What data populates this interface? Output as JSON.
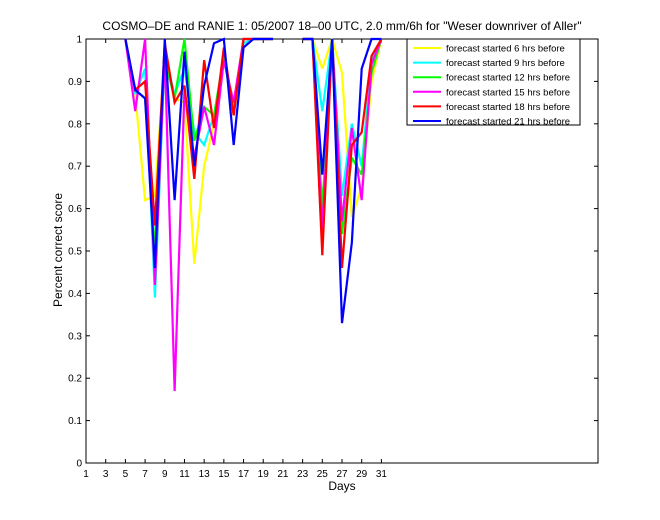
{
  "chart_data": {
    "type": "line",
    "title": "COSMO–DE and RANIE 1: 05/2007 18–00 UTC, 2.0 mm/6h for \"Weser downriver of Aller\"",
    "xlabel": "Days",
    "ylabel": "Percent correct score",
    "xlim": [
      1,
      53
    ],
    "ylim": [
      0,
      1
    ],
    "xticks": [
      1,
      3,
      5,
      7,
      9,
      11,
      13,
      15,
      17,
      19,
      21,
      23,
      25,
      27,
      29,
      31
    ],
    "yticks": [
      0,
      0.1,
      0.2,
      0.3,
      0.4,
      0.5,
      0.6,
      0.7,
      0.8,
      0.9,
      1
    ],
    "ytick_labels": [
      "0",
      "0.1",
      "0.2",
      "0.3",
      "0.4",
      "0.5",
      "0.6",
      "0.7",
      "0.8",
      "0.9",
      "1"
    ],
    "grid": false,
    "legend_position": "top-right",
    "series": [
      {
        "name": "forecast started 6 hrs before",
        "color": "#ffff00",
        "segments": [
          [
            [
              5,
              1
            ],
            [
              6,
              0.87
            ],
            [
              7,
              0.62
            ],
            [
              8,
              0.63
            ],
            [
              9,
              0.96
            ],
            [
              10,
              0.86
            ],
            [
              11,
              0.85
            ],
            [
              12,
              0.47
            ],
            [
              13,
              0.7
            ],
            [
              14,
              0.8
            ],
            [
              15,
              0.95
            ],
            [
              16,
              0.85
            ],
            [
              17,
              0.99
            ],
            [
              18,
              1
            ],
            [
              19,
              1
            ],
            [
              20,
              1
            ]
          ],
          [
            [
              23,
              1
            ],
            [
              24,
              1
            ],
            [
              25,
              0.93
            ],
            [
              26,
              1
            ],
            [
              27,
              0.92
            ],
            [
              28,
              0.58
            ],
            [
              29,
              0.65
            ],
            [
              30,
              0.9
            ],
            [
              31,
              1
            ]
          ]
        ]
      },
      {
        "name": "forecast started 9 hrs before",
        "color": "#00ffff",
        "segments": [
          [
            [
              5,
              1
            ],
            [
              6,
              0.87
            ],
            [
              7,
              0.93
            ],
            [
              8,
              0.39
            ],
            [
              9,
              0.96
            ],
            [
              10,
              0.87
            ],
            [
              11,
              0.93
            ],
            [
              12,
              0.78
            ],
            [
              13,
              0.75
            ],
            [
              14,
              0.82
            ],
            [
              15,
              0.95
            ],
            [
              16,
              0.84
            ],
            [
              17,
              0.99
            ],
            [
              18,
              1
            ],
            [
              19,
              1
            ],
            [
              20,
              1
            ]
          ],
          [
            [
              23,
              1
            ],
            [
              24,
              1
            ],
            [
              25,
              0.83
            ],
            [
              26,
              1
            ],
            [
              27,
              0.63
            ],
            [
              28,
              0.8
            ],
            [
              29,
              0.7
            ],
            [
              30,
              0.95
            ],
            [
              31,
              1
            ]
          ]
        ]
      },
      {
        "name": "forecast started 12 hrs before",
        "color": "#00ff00",
        "segments": [
          [
            [
              5,
              1
            ],
            [
              6,
              0.88
            ],
            [
              7,
              0.86
            ],
            [
              8,
              0.5
            ],
            [
              9,
              0.95
            ],
            [
              10,
              0.86
            ],
            [
              11,
              1
            ],
            [
              12,
              0.76
            ],
            [
              13,
              0.84
            ],
            [
              14,
              0.82
            ],
            [
              15,
              0.96
            ],
            [
              16,
              0.82
            ],
            [
              17,
              1
            ],
            [
              18,
              1
            ],
            [
              19,
              1
            ],
            [
              20,
              1
            ]
          ],
          [
            [
              23,
              1
            ],
            [
              24,
              1
            ],
            [
              25,
              0.6
            ],
            [
              26,
              1
            ],
            [
              27,
              0.54
            ],
            [
              28,
              0.72
            ],
            [
              29,
              0.68
            ],
            [
              30,
              0.92
            ],
            [
              31,
              1
            ]
          ]
        ]
      },
      {
        "name": "forecast started 15 hrs before",
        "color": "#ff00ff",
        "segments": [
          [
            [
              5,
              1
            ],
            [
              6,
              0.83
            ],
            [
              7,
              1
            ],
            [
              8,
              0.42
            ],
            [
              9,
              0.97
            ],
            [
              10,
              0.17
            ],
            [
              11,
              0.88
            ],
            [
              12,
              0.72
            ],
            [
              13,
              0.84
            ],
            [
              14,
              0.75
            ],
            [
              15,
              0.95
            ],
            [
              16,
              0.85
            ],
            [
              17,
              1
            ],
            [
              18,
              1
            ],
            [
              19,
              1
            ],
            [
              20,
              1
            ]
          ],
          [
            [
              23,
              1
            ],
            [
              24,
              1
            ],
            [
              25,
              0.55
            ],
            [
              26,
              1
            ],
            [
              27,
              0.57
            ],
            [
              28,
              0.79
            ],
            [
              29,
              0.62
            ],
            [
              30,
              0.94
            ],
            [
              31,
              1
            ]
          ]
        ]
      },
      {
        "name": "forecast started 18 hrs before",
        "color": "#ff0000",
        "segments": [
          [
            [
              5,
              1
            ],
            [
              6,
              0.88
            ],
            [
              7,
              0.9
            ],
            [
              8,
              0.56
            ],
            [
              9,
              0.99
            ],
            [
              10,
              0.85
            ],
            [
              11,
              0.89
            ],
            [
              12,
              0.67
            ],
            [
              13,
              0.95
            ],
            [
              14,
              0.79
            ],
            [
              15,
              0.98
            ],
            [
              16,
              0.82
            ],
            [
              17,
              1
            ],
            [
              18,
              1
            ],
            [
              19,
              1
            ],
            [
              20,
              1
            ]
          ],
          [
            [
              23,
              1
            ],
            [
              24,
              1
            ],
            [
              25,
              0.49
            ],
            [
              26,
              1
            ],
            [
              27,
              0.46
            ],
            [
              28,
              0.75
            ],
            [
              29,
              0.78
            ],
            [
              30,
              0.96
            ],
            [
              31,
              1
            ]
          ]
        ]
      },
      {
        "name": "forecast started 21 hrs before",
        "color": "#0000ff",
        "segments": [
          [
            [
              5,
              1
            ],
            [
              6,
              0.88
            ],
            [
              7,
              0.86
            ],
            [
              8,
              0.46
            ],
            [
              9,
              1
            ],
            [
              10,
              0.62
            ],
            [
              11,
              0.97
            ],
            [
              12,
              0.7
            ],
            [
              13,
              0.89
            ],
            [
              14,
              0.99
            ],
            [
              15,
              1
            ],
            [
              16,
              0.75
            ],
            [
              17,
              0.98
            ],
            [
              18,
              1
            ],
            [
              19,
              1
            ],
            [
              20,
              1
            ]
          ],
          [
            [
              23,
              1
            ],
            [
              24,
              1
            ],
            [
              25,
              0.68
            ],
            [
              26,
              1
            ],
            [
              27,
              0.33
            ],
            [
              28,
              0.52
            ],
            [
              29,
              0.93
            ],
            [
              30,
              1
            ],
            [
              31,
              1
            ]
          ]
        ]
      }
    ]
  }
}
